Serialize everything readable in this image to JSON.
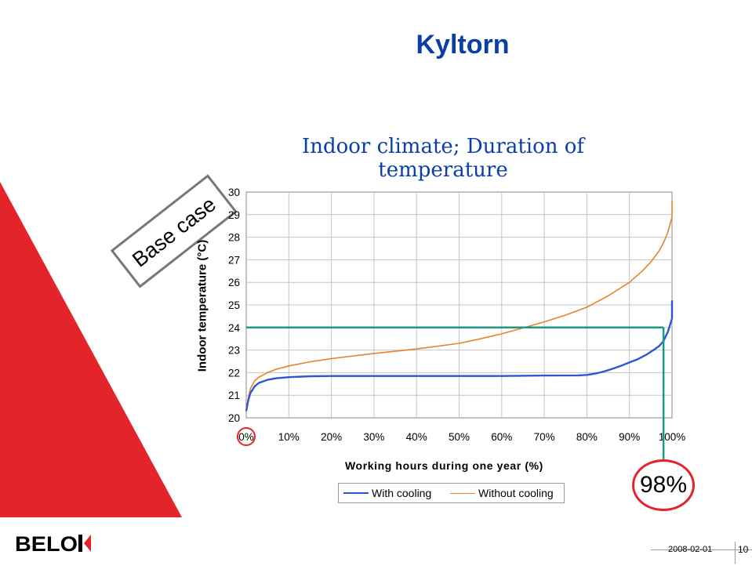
{
  "slide": {
    "title": "Kyltorn",
    "badge": "Base case",
    "result": "98%"
  },
  "footer": {
    "date": "2008-02-01",
    "page": "10",
    "logo": "BELOK"
  },
  "colors": {
    "with_cooling": "#2f55d4",
    "without_cooling": "#e8822a",
    "marker_line": "#1a9a80",
    "highlight": "#e3242b",
    "title": "#0a3fa8"
  },
  "chart_data": {
    "type": "line",
    "title": "Indoor climate; Duration of temperature",
    "xlabel": "Working hours during one year (%)",
    "ylabel": "Indoor temperature (°C)",
    "xlim": [
      0,
      100
    ],
    "ylim": [
      20,
      30
    ],
    "x_ticks": [
      "0%",
      "10%",
      "20%",
      "30%",
      "40%",
      "50%",
      "60%",
      "70%",
      "80%",
      "90%",
      "100%"
    ],
    "y_ticks": [
      "20",
      "21",
      "22",
      "23",
      "24",
      "25",
      "26",
      "27",
      "28",
      "29",
      "30"
    ],
    "grid": true,
    "legend": "bottom",
    "series": [
      {
        "name": "With cooling",
        "x": [
          0,
          0.5,
          1,
          2,
          3,
          5,
          7,
          10,
          15,
          20,
          30,
          40,
          50,
          60,
          70,
          78,
          80,
          82,
          84,
          86,
          88,
          90,
          92,
          94,
          95,
          96,
          97,
          98,
          99,
          100,
          100
        ],
        "y": [
          20.3,
          20.8,
          21.1,
          21.4,
          21.55,
          21.68,
          21.75,
          21.8,
          21.84,
          21.85,
          21.85,
          21.85,
          21.85,
          21.85,
          21.87,
          21.88,
          21.9,
          21.96,
          22.05,
          22.17,
          22.3,
          22.45,
          22.6,
          22.8,
          22.92,
          23.05,
          23.18,
          23.4,
          23.8,
          24.4,
          25.2
        ]
      },
      {
        "name": "Without cooling",
        "x": [
          0,
          0.5,
          1,
          2,
          3,
          5,
          7,
          10,
          15,
          20,
          30,
          40,
          50,
          55,
          60,
          65,
          70,
          75,
          80,
          85,
          90,
          93,
          95,
          97,
          98,
          99,
          100,
          100
        ],
        "y": [
          20.3,
          20.9,
          21.3,
          21.65,
          21.8,
          22.0,
          22.15,
          22.3,
          22.48,
          22.62,
          22.85,
          23.05,
          23.3,
          23.5,
          23.72,
          23.98,
          24.25,
          24.55,
          24.9,
          25.4,
          26.0,
          26.5,
          26.9,
          27.4,
          27.75,
          28.2,
          28.9,
          29.6
        ]
      }
    ],
    "annotation": {
      "x": 98,
      "y": 24
    }
  }
}
